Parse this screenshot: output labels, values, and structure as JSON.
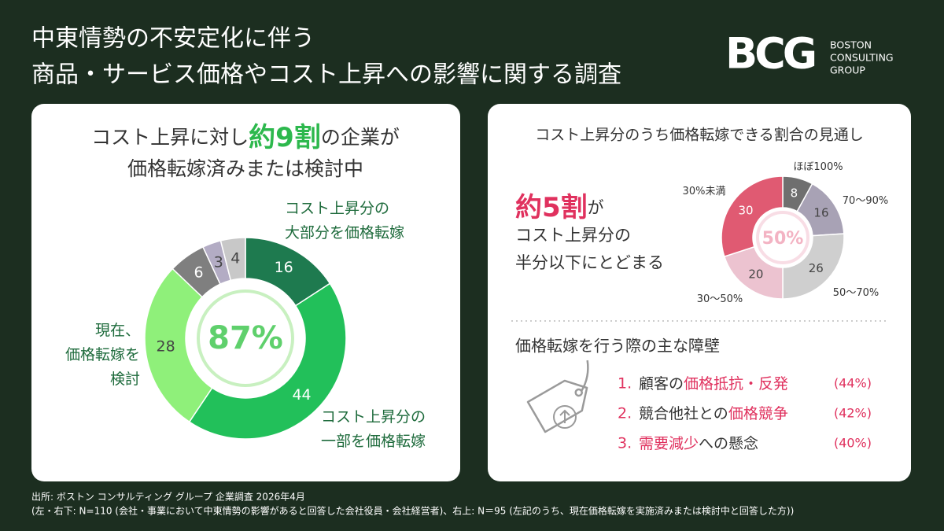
{
  "header": {
    "title": [
      "中東情勢の不安定化に伴う",
      "商品・サービス価格やコスト上昇への影響に関する調査"
    ],
    "logo": "BCG",
    "logo_text": [
      "BOSTON",
      "CONSULTING",
      "GROUP"
    ]
  },
  "left_panel": {
    "headline": [
      [
        {
          "text": "コスト上昇に対し"
        },
        {
          "text": "約9割",
          "highlight": true
        },
        {
          "text": "の企業が"
        }
      ],
      [
        {
          "text": "価格転嫁済みまたは検討中"
        }
      ]
    ]
  },
  "chart_data": [
    {
      "type": "donut",
      "categories": [
        [
          "コスト上昇分の",
          "大部分を価格転嫁"
        ],
        [
          "コスト上昇分の",
          "一部を価格転嫁"
        ],
        [
          "現在、",
          "価格転嫁を",
          "検討"
        ],
        null,
        null,
        null
      ],
      "values": [
        16,
        44,
        28,
        6,
        3,
        4
      ],
      "colors": [
        "#1e7a4f",
        "#22c05a",
        "#8ff07a",
        "#7f7f7f",
        "#b3acc4",
        "#c8c8c8"
      ],
      "center_label": "87%"
    },
    {
      "type": "donut",
      "title": "コスト上昇分のうち価格転嫁できる割合の見通し",
      "categories": [
        [
          "ほぼ100%"
        ],
        [
          "70〜90%"
        ],
        [
          "50〜70%"
        ],
        [
          "30〜50%"
        ],
        [
          "30%未満"
        ]
      ],
      "values": [
        8,
        16,
        26,
        20,
        30
      ],
      "colors": [
        "#6f6f6f",
        "#a8a2b5",
        "#cfcfcf",
        "#ecc3d0",
        "#e05a72"
      ],
      "center_label": "50%"
    }
  ],
  "right_panel": {
    "headline": [
      [
        {
          "text": "約5割",
          "highlight": true
        },
        {
          "text": "が"
        }
      ],
      [
        {
          "text": "コスト上昇分の"
        }
      ],
      [
        {
          "text": "半分以下にとどまる"
        }
      ]
    ],
    "barriers": {
      "title": "価格転嫁を行う際の主な障壁",
      "items": [
        {
          "rank": "1.",
          "parts": [
            {
              "text": "顧客の"
            },
            {
              "text": "価格抵抗・反発",
              "highlight": true
            }
          ],
          "share": "(44%)"
        },
        {
          "rank": "2.",
          "parts": [
            {
              "text": "競合他社との"
            },
            {
              "text": "価格競争",
              "highlight": true
            }
          ],
          "share": "(42%)"
        },
        {
          "rank": "3.",
          "parts": [
            {
              "text": "需要減少",
              "highlight": true
            },
            {
              "text": "への懸念"
            }
          ],
          "share": "(40%)"
        }
      ]
    }
  },
  "footer": [
    "出所: ボストン コンサルティング グループ 企業調査 2026年4月",
    "(左・右下: N=110 (会社・事業において中東情勢の影響があると回答した会社役員・会社経営者)、右上: N＝95 (左記のうち、現在価格転嫁を実施済みまたは検討中と回答した方))"
  ]
}
